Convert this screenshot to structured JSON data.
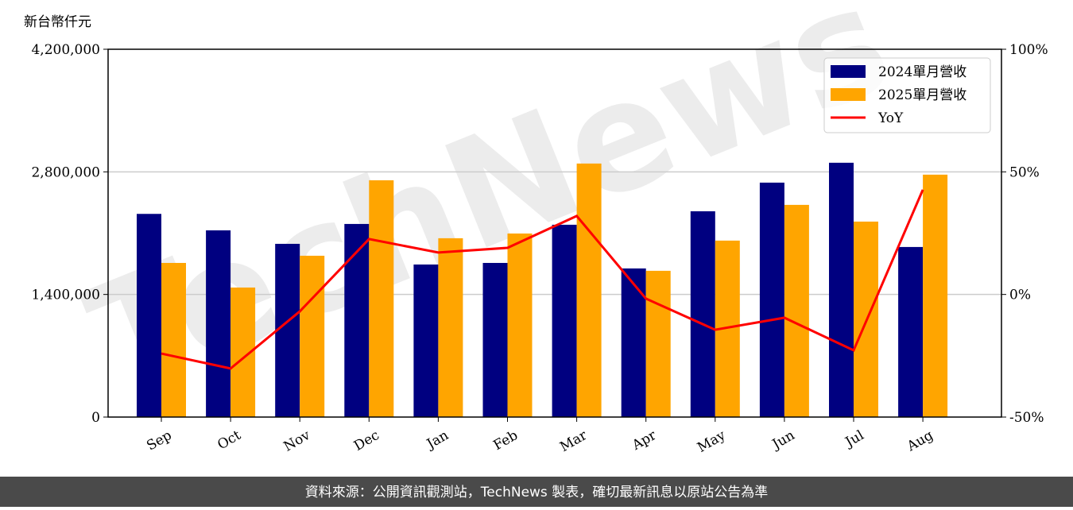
{
  "chart_data": {
    "type": "bar",
    "y_label": "新台幣仟元",
    "watermark": "TechNews",
    "footer": "資料來源：公開資訊觀測站，TechNews 製表，確切最新訊息以原站公告為準",
    "categories": [
      "Sep",
      "Oct",
      "Nov",
      "Dec",
      "Jan",
      "Feb",
      "Mar",
      "Apr",
      "May",
      "Jun",
      "Jul",
      "Aug"
    ],
    "series": [
      {
        "name": "2024單月營收",
        "color": "#000080",
        "type": "bar",
        "values": [
          2320000,
          2132000,
          1978000,
          2205000,
          1742000,
          1760000,
          2196000,
          1697000,
          2350000,
          2677000,
          2904000,
          1942000
        ]
      },
      {
        "name": "2025單月營收",
        "color": "#ffa500",
        "type": "bar",
        "values": [
          1760000,
          1479000,
          1842000,
          2704000,
          2042000,
          2096000,
          2895000,
          1670000,
          2015000,
          2423000,
          2232000,
          2768000
        ]
      },
      {
        "name": "YoY",
        "color": "#ff0000",
        "type": "line",
        "axis": "y2",
        "values": [
          -24.1,
          -30.2,
          -6.9,
          22.6,
          17.1,
          19.0,
          32.0,
          -1.7,
          -14.4,
          -9.5,
          -22.8,
          42.7
        ]
      }
    ],
    "ylim": [
      0,
      4200000
    ],
    "yticks": [
      {
        "value": 0,
        "label": "0"
      },
      {
        "value": 1400000,
        "label": "1,400,000"
      },
      {
        "value": 2800000,
        "label": "2,800,000"
      },
      {
        "value": 4200000,
        "label": "4,200,000"
      }
    ],
    "y2lim": [
      -50,
      100
    ],
    "y2ticks": [
      {
        "value": -50,
        "label": "-50%"
      },
      {
        "value": 0,
        "label": "0%"
      },
      {
        "value": 50,
        "label": "50%"
      },
      {
        "value": 100,
        "label": "100%"
      }
    ],
    "grid": true,
    "legend": "upper right"
  }
}
